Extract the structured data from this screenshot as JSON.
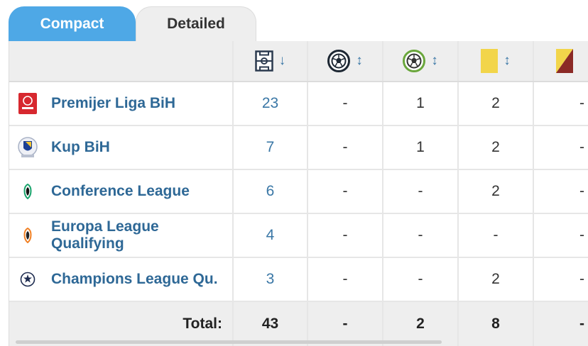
{
  "tabs": {
    "compact": "Compact",
    "detailed": "Detailed"
  },
  "header": {
    "columns": [
      {
        "icon": "pitch-icon",
        "sort": "↓"
      },
      {
        "icon": "football-goal-icon",
        "sort": "↕"
      },
      {
        "icon": "football-assist-icon",
        "sort": "↕"
      },
      {
        "icon": "yellow-card-icon",
        "sort": "↕"
      },
      {
        "icon": "second-yellow-card-icon",
        "sort": "↕"
      }
    ]
  },
  "rows": [
    {
      "competition": "Premijer Liga BiH",
      "logo": "premijer-liga-logo",
      "apps": "23",
      "goals": "-",
      "assists": "1",
      "yellow": "2",
      "second_yellow": "-"
    },
    {
      "competition": "Kup BiH",
      "logo": "kup-bih-logo",
      "apps": "7",
      "goals": "-",
      "assists": "1",
      "yellow": "2",
      "second_yellow": "-"
    },
    {
      "competition": "Conference League",
      "logo": "conference-league-logo",
      "logo_text": "CONFERENCE LEAGUE",
      "apps": "6",
      "goals": "-",
      "assists": "-",
      "yellow": "2",
      "second_yellow": "-"
    },
    {
      "competition": "Europa League Qualifying",
      "logo": "europa-league-logo",
      "logo_text": "EUROPA LEAGUE",
      "apps": "4",
      "goals": "-",
      "assists": "-",
      "yellow": "-",
      "second_yellow": "-"
    },
    {
      "competition": "Champions League Qu.",
      "logo": "champions-league-logo",
      "logo_text": "CHAMPIONS LEAGUE",
      "apps": "3",
      "goals": "-",
      "assists": "-",
      "yellow": "2",
      "second_yellow": "-"
    }
  ],
  "total": {
    "label": "Total:",
    "apps": "43",
    "goals": "-",
    "assists": "2",
    "yellow": "8",
    "second_yellow": "-"
  },
  "colors": {
    "tab_active": "#4ea8e6",
    "link": "#2e6896",
    "header_bg": "#eeeeee",
    "yellow_card": "#f2d54a",
    "red_card": "#8b2a26"
  }
}
